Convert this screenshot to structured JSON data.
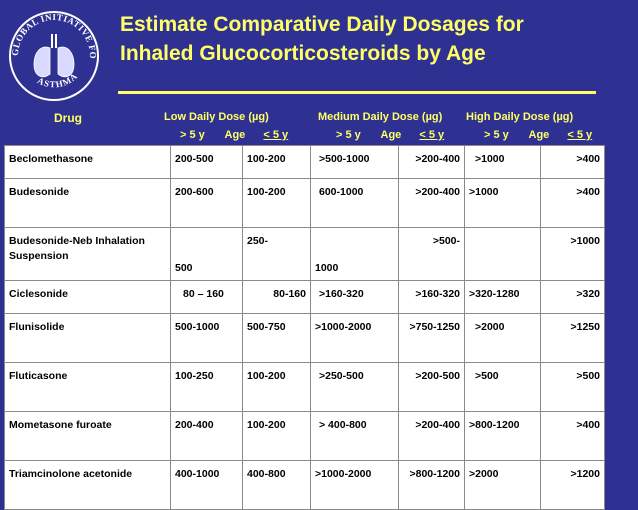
{
  "logo": {
    "text_top": "GLOBAL INITIATIVE FOR",
    "text_bottom": "ASTHMA"
  },
  "title": {
    "line1": "Estimate Comparative Daily Dosages for",
    "line2": "Inhaled Glucocorticosteroids by Age"
  },
  "header": {
    "drug": "Drug",
    "low": "Low  Daily Dose (µg)",
    "medium": "Medium Daily Dose (µg)",
    "high": "High Daily Dose (µg)",
    "sub_gt5": "> 5 y",
    "sub_age": "Age",
    "sub_le5": "< 5 y"
  },
  "rows": [
    {
      "drug": "Beclomethasone",
      "low_gt5": "200-500",
      "low_le5": "100-200",
      "med_gt5": ">500-1000",
      "med_le5": ">200-400",
      "high_gt5": ">1000",
      "high_le5": ">400"
    },
    {
      "drug": "Budesonide",
      "low_gt5": "200-600",
      "low_le5": "100-200",
      "med_gt5": "600-1000",
      "med_le5": ">200-400",
      "high_gt5": ">1000",
      "high_le5": ">400"
    },
    {
      "drug": "Budesonide-Neb Inhalation Suspension",
      "low_gt5": "500",
      "low_le5": "250-",
      "med_gt5": "1000",
      "med_le5": ">500-",
      "high_gt5": "",
      "high_le5": ">1000"
    },
    {
      "drug": "Ciclesonide",
      "low_gt5": "80 – 160",
      "low_le5": "80-160",
      "med_gt5": ">160-320",
      "med_le5": ">160-320",
      "high_gt5": ">320-1280",
      "high_le5": ">320"
    },
    {
      "drug": "Flunisolide",
      "low_gt5": "500-1000",
      "low_le5": "500-750",
      "med_gt5": ">1000-2000",
      "med_le5": ">750-1250",
      "high_gt5": ">2000",
      "high_le5": ">1250"
    },
    {
      "drug": "Fluticasone",
      "low_gt5": "100-250",
      "low_le5": "100-200",
      "med_gt5": ">250-500",
      "med_le5": ">200-500",
      "high_gt5": ">500",
      "high_le5": ">500"
    },
    {
      "drug": "Mometasone furoate",
      "low_gt5": "200-400",
      "low_le5": "100-200",
      "med_gt5": "> 400-800",
      "med_le5": ">200-400",
      "high_gt5": ">800-1200",
      "high_le5": ">400"
    },
    {
      "drug": "Triamcinolone acetonide",
      "low_gt5": "400-1000",
      "low_le5": "400-800",
      "med_gt5": ">1000-2000",
      "med_le5": ">800-1200",
      "high_gt5": ">2000",
      "high_le5": ">1200"
    }
  ]
}
